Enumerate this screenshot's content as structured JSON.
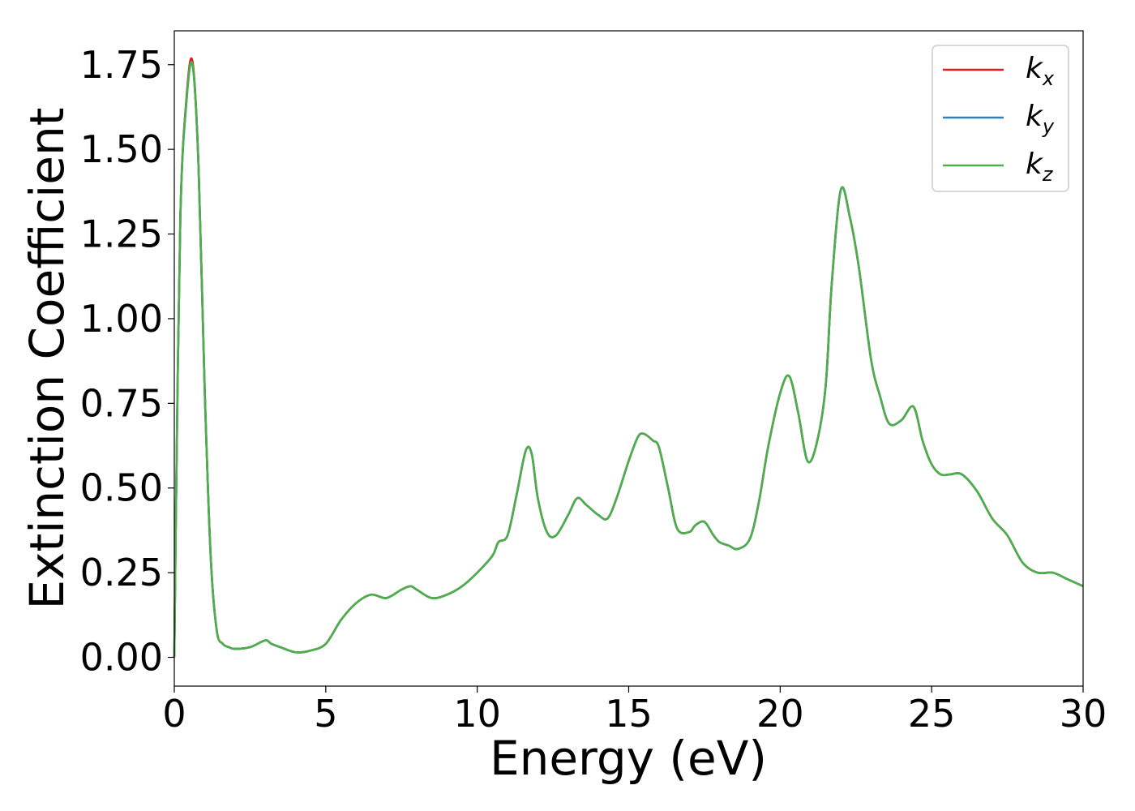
{
  "chart_data": {
    "type": "line",
    "title": "",
    "xlabel": "Energy (eV)",
    "ylabel": "Extinction Coefficient",
    "xlim": [
      0,
      30
    ],
    "ylim": [
      -0.085,
      1.85
    ],
    "grid": false,
    "legend_position": "top-right",
    "x_ticks": [
      0,
      5,
      10,
      15,
      20,
      25,
      30
    ],
    "y_ticks": [
      0.0,
      0.25,
      0.5,
      0.75,
      1.0,
      1.25,
      1.5,
      1.75
    ],
    "x_tick_labels": [
      "0",
      "5",
      "10",
      "15",
      "20",
      "25",
      "30"
    ],
    "y_tick_labels": [
      "0.00",
      "0.25",
      "0.50",
      "0.75",
      "1.00",
      "1.25",
      "1.50",
      "1.75"
    ],
    "series": [
      {
        "name": "k_x",
        "label_base": "k",
        "label_sub": "x",
        "color": "#e41a1c",
        "x": [
          0,
          0.05,
          0.2,
          0.4,
          0.6,
          0.8,
          1.0,
          1.2,
          1.4,
          1.6,
          1.8,
          2.0,
          2.5,
          3.0,
          3.2,
          3.5,
          4.0,
          4.5,
          5.0,
          5.5,
          6.0,
          6.5,
          7.0,
          7.5,
          7.8,
          8.0,
          8.5,
          9.0,
          9.5,
          10.0,
          10.5,
          10.7,
          11.0,
          11.3,
          11.6,
          11.8,
          12.0,
          12.3,
          12.6,
          13.0,
          13.3,
          13.6,
          14.0,
          14.3,
          14.6,
          15.0,
          15.3,
          15.5,
          15.8,
          16.0,
          16.3,
          16.6,
          17.0,
          17.2,
          17.5,
          17.8,
          18.0,
          18.3,
          18.6,
          19.0,
          19.3,
          19.6,
          20.0,
          20.3,
          20.6,
          20.9,
          21.2,
          21.5,
          21.7,
          22.0,
          22.3,
          22.6,
          23.0,
          23.3,
          23.6,
          24.0,
          24.4,
          24.7,
          25.0,
          25.3,
          25.6,
          26.0,
          26.5,
          27.0,
          27.5,
          28.0,
          28.5,
          29.0,
          29.5,
          30.0
        ],
        "y": [
          0.0,
          0.4,
          1.3,
          1.65,
          1.76,
          1.45,
          0.8,
          0.3,
          0.08,
          0.04,
          0.03,
          0.025,
          0.03,
          0.05,
          0.04,
          0.03,
          0.015,
          0.02,
          0.04,
          0.11,
          0.16,
          0.185,
          0.175,
          0.2,
          0.21,
          0.2,
          0.175,
          0.185,
          0.21,
          0.25,
          0.3,
          0.34,
          0.36,
          0.48,
          0.61,
          0.6,
          0.47,
          0.37,
          0.36,
          0.42,
          0.47,
          0.45,
          0.42,
          0.41,
          0.47,
          0.58,
          0.65,
          0.66,
          0.64,
          0.62,
          0.5,
          0.38,
          0.37,
          0.39,
          0.4,
          0.36,
          0.34,
          0.33,
          0.32,
          0.35,
          0.46,
          0.62,
          0.78,
          0.83,
          0.72,
          0.58,
          0.63,
          0.8,
          1.1,
          1.38,
          1.3,
          1.15,
          0.88,
          0.77,
          0.69,
          0.7,
          0.74,
          0.64,
          0.57,
          0.54,
          0.54,
          0.54,
          0.49,
          0.41,
          0.36,
          0.28,
          0.25,
          0.25,
          0.23,
          0.21
        ]
      },
      {
        "name": "k_y",
        "label_base": "k",
        "label_sub": "y",
        "color": "#377eb8",
        "x": [
          0,
          0.05,
          0.2,
          0.4,
          0.6,
          0.8,
          1.0,
          1.2,
          1.4,
          1.6,
          1.8,
          2.0,
          2.5,
          3.0,
          3.2,
          3.5,
          4.0,
          4.5,
          5.0,
          5.5,
          6.0,
          6.5,
          7.0,
          7.5,
          7.8,
          8.0,
          8.5,
          9.0,
          9.5,
          10.0,
          10.5,
          10.7,
          11.0,
          11.3,
          11.6,
          11.8,
          12.0,
          12.3,
          12.6,
          13.0,
          13.3,
          13.6,
          14.0,
          14.3,
          14.6,
          15.0,
          15.3,
          15.5,
          15.8,
          16.0,
          16.3,
          16.6,
          17.0,
          17.2,
          17.5,
          17.8,
          18.0,
          18.3,
          18.6,
          19.0,
          19.3,
          19.6,
          20.0,
          20.3,
          20.6,
          20.9,
          21.2,
          21.5,
          21.7,
          22.0,
          22.3,
          22.6,
          23.0,
          23.3,
          23.6,
          24.0,
          24.4,
          24.7,
          25.0,
          25.3,
          25.6,
          26.0,
          26.5,
          27.0,
          27.5,
          28.0,
          28.5,
          29.0,
          29.5,
          30.0
        ],
        "y": [
          0.0,
          0.4,
          1.3,
          1.64,
          1.75,
          1.45,
          0.8,
          0.3,
          0.08,
          0.04,
          0.03,
          0.025,
          0.03,
          0.05,
          0.04,
          0.03,
          0.015,
          0.02,
          0.04,
          0.11,
          0.16,
          0.185,
          0.175,
          0.2,
          0.21,
          0.2,
          0.175,
          0.185,
          0.21,
          0.25,
          0.3,
          0.34,
          0.36,
          0.48,
          0.61,
          0.6,
          0.47,
          0.37,
          0.36,
          0.42,
          0.47,
          0.45,
          0.42,
          0.41,
          0.47,
          0.58,
          0.65,
          0.66,
          0.64,
          0.62,
          0.5,
          0.38,
          0.37,
          0.39,
          0.4,
          0.36,
          0.34,
          0.33,
          0.32,
          0.35,
          0.46,
          0.62,
          0.78,
          0.83,
          0.72,
          0.58,
          0.63,
          0.8,
          1.1,
          1.38,
          1.3,
          1.15,
          0.88,
          0.77,
          0.69,
          0.7,
          0.74,
          0.64,
          0.57,
          0.54,
          0.54,
          0.54,
          0.49,
          0.41,
          0.36,
          0.28,
          0.25,
          0.25,
          0.23,
          0.21
        ]
      },
      {
        "name": "k_z",
        "label_base": "k",
        "label_sub": "z",
        "color": "#4daf4a",
        "x": [
          0,
          0.05,
          0.2,
          0.4,
          0.6,
          0.8,
          1.0,
          1.2,
          1.4,
          1.6,
          1.8,
          2.0,
          2.5,
          3.0,
          3.2,
          3.5,
          4.0,
          4.5,
          5.0,
          5.5,
          6.0,
          6.5,
          7.0,
          7.5,
          7.8,
          8.0,
          8.5,
          9.0,
          9.5,
          10.0,
          10.5,
          10.7,
          11.0,
          11.3,
          11.6,
          11.8,
          12.0,
          12.3,
          12.6,
          13.0,
          13.3,
          13.6,
          14.0,
          14.3,
          14.6,
          15.0,
          15.3,
          15.5,
          15.8,
          16.0,
          16.3,
          16.6,
          17.0,
          17.2,
          17.5,
          17.8,
          18.0,
          18.3,
          18.6,
          19.0,
          19.3,
          19.6,
          20.0,
          20.3,
          20.6,
          20.9,
          21.2,
          21.5,
          21.7,
          22.0,
          22.3,
          22.6,
          23.0,
          23.3,
          23.6,
          24.0,
          24.4,
          24.7,
          25.0,
          25.3,
          25.6,
          26.0,
          26.5,
          27.0,
          27.5,
          28.0,
          28.5,
          29.0,
          29.5,
          30.0
        ],
        "y": [
          0.0,
          0.4,
          1.3,
          1.64,
          1.75,
          1.45,
          0.8,
          0.3,
          0.08,
          0.04,
          0.03,
          0.025,
          0.03,
          0.05,
          0.04,
          0.03,
          0.015,
          0.02,
          0.04,
          0.11,
          0.16,
          0.185,
          0.175,
          0.2,
          0.21,
          0.2,
          0.175,
          0.185,
          0.21,
          0.25,
          0.3,
          0.34,
          0.36,
          0.48,
          0.61,
          0.6,
          0.47,
          0.37,
          0.36,
          0.42,
          0.47,
          0.45,
          0.42,
          0.41,
          0.47,
          0.58,
          0.65,
          0.66,
          0.64,
          0.62,
          0.5,
          0.38,
          0.37,
          0.39,
          0.4,
          0.36,
          0.34,
          0.33,
          0.32,
          0.35,
          0.46,
          0.62,
          0.78,
          0.83,
          0.72,
          0.58,
          0.63,
          0.8,
          1.1,
          1.38,
          1.3,
          1.15,
          0.88,
          0.77,
          0.69,
          0.7,
          0.74,
          0.64,
          0.57,
          0.54,
          0.54,
          0.54,
          0.49,
          0.41,
          0.36,
          0.28,
          0.25,
          0.25,
          0.23,
          0.21
        ]
      }
    ]
  }
}
